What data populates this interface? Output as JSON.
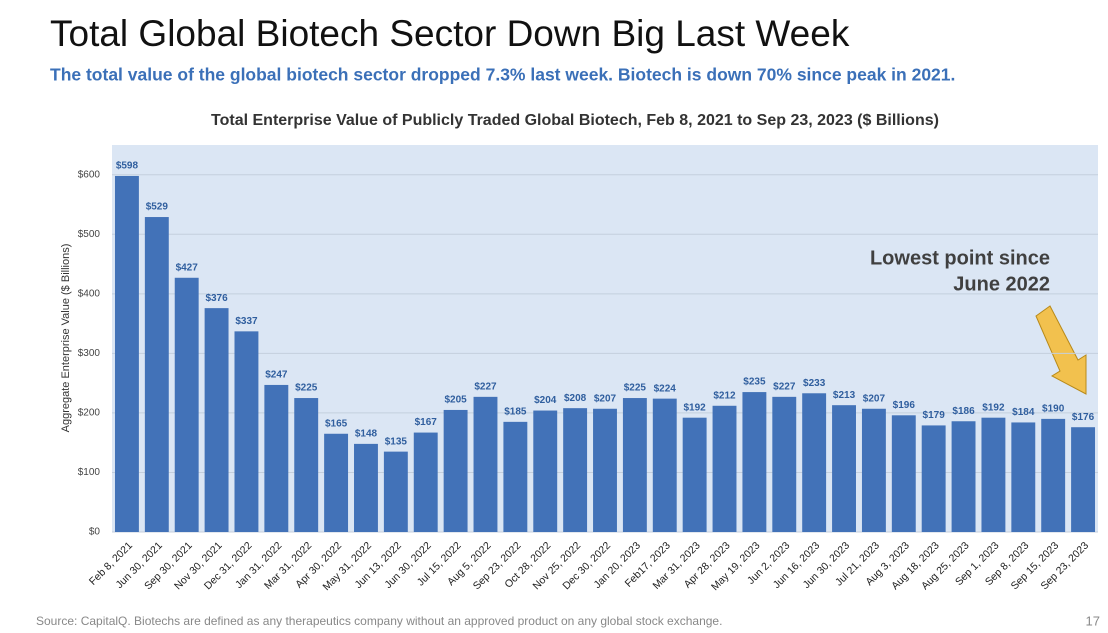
{
  "title": "Total Global Biotech Sector Down Big Last Week",
  "subtitle": "The total value of the global biotech sector dropped 7.3% last week. Biotech is down 70% since peak in 2021.",
  "source": "Source: CapitalQ. Biotechs are defined as any therapeutics company without an approved product on any global stock exchange.",
  "page_number": 17,
  "chart_data": {
    "type": "bar",
    "title": "Total Enterprise Value of Publicly Traded Global Biotech, Feb 8, 2021 to Sep 23, 2023 ($ Billions)",
    "y_label": "Aggregate Enterprise Value ($ Billions)",
    "annotation": [
      "Lowest point since",
      "June 2022"
    ],
    "color": "#4272b8",
    "categories": [
      "Feb 8, 2021",
      "Jun 30, 2021",
      "Sep 30, 2021",
      "Nov 30, 2021",
      "Dec 31, 2022",
      "Jan 31, 2022",
      "Mar 31, 2022",
      "Apr 30, 2022",
      "May 31, 2022",
      "Jun 13, 2022",
      "Jun 30, 2022",
      "Jul 15, 2022",
      "Aug 5, 2022",
      "Sep 23, 2022",
      "Oct 28, 2022",
      "Nov 25, 2022",
      "Dec 30, 2022",
      "Jan 20, 2023",
      "Feb17, 2023",
      "Mar 31, 2023",
      "Apr 28, 2023",
      "May 19, 2023",
      "Jun 2, 2023",
      "Jun 16, 2023",
      "Jun 30, 2023",
      "Jul 21, 2023",
      "Aug 3, 2023",
      "Aug 18, 2023",
      "Aug 25, 2023",
      "Sep 1, 2023",
      "Sep 8, 2023",
      "Sep 15, 2023",
      "Sep 23, 2023"
    ],
    "values": [
      598,
      529,
      427,
      376,
      337,
      247,
      225,
      165,
      148,
      135,
      167,
      205,
      227,
      185,
      204,
      208,
      207,
      225,
      224,
      192,
      212,
      235,
      227,
      233,
      213,
      207,
      196,
      179,
      186,
      192,
      184,
      190,
      176
    ],
    "value_labels": [
      "$598",
      "$529",
      "$427",
      "$376",
      "$337",
      "$247",
      "$225",
      "$165",
      "$148",
      "$135",
      "$167",
      "$205",
      "$227",
      "$185",
      "$204",
      "$208",
      "$207",
      "$225",
      "$224",
      "$192",
      "$212",
      "$235",
      "$227",
      "$233",
      "$213",
      "$207",
      "$196",
      "$179",
      "$186",
      "$192",
      "$184",
      "$190",
      "$176"
    ],
    "ylim": [
      0,
      650
    ],
    "yticks": [
      {
        "value": 0,
        "label": "$0"
      },
      {
        "value": 100,
        "label": "$100"
      },
      {
        "value": 200,
        "label": "$200"
      },
      {
        "value": 300,
        "label": "$300"
      },
      {
        "value": 400,
        "label": "$400"
      },
      {
        "value": 500,
        "label": "$500"
      },
      {
        "value": 600,
        "label": "$600"
      }
    ],
    "grid": true
  }
}
